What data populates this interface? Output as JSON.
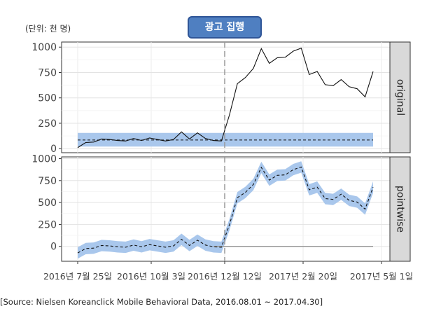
{
  "annotations": {
    "unit": "(단위: 천 명)",
    "campaign_label": "광고 집행",
    "source": "[Source: Nielsen Koreanclick Mobile Behavioral Data, 2016.08.01 ~ 2017.04.30]"
  },
  "colors": {
    "band": "#a9c7ec",
    "panel_strip": "#d9d9d9",
    "intervention_line": "#999999"
  },
  "chart_data": [
    {
      "type": "line",
      "panel": "original",
      "strip_label": "original",
      "x_ticks": [
        "2016년 7월 25일",
        "2016년 10월 3일",
        "2016년 12월 12일",
        "2017년 2월 20일",
        "2017년 5월 1일"
      ],
      "y_ticks": [
        0,
        250,
        500,
        750,
        1000
      ],
      "ylim": [
        -40,
        1050
      ],
      "grid": true,
      "intervention_index": 17,
      "series": [
        {
          "type": "line",
          "values": [
            10,
            60,
            65,
            95,
            90,
            80,
            75,
            100,
            80,
            105,
            90,
            75,
            90,
            165,
            95,
            155,
            100,
            80,
            75,
            330,
            640,
            700,
            790,
            985,
            840,
            895,
            900,
            960,
            990,
            730,
            760,
            630,
            620,
            680,
            610,
            590,
            510,
            760
          ]
        },
        {
          "type": "line_dashed",
          "values": [
            85,
            85,
            85,
            85,
            85,
            85,
            85,
            85,
            85,
            85,
            85,
            85,
            85,
            85,
            85,
            85,
            85,
            85,
            85,
            85,
            85,
            85,
            85,
            85,
            85,
            85,
            85,
            85,
            85,
            85,
            85,
            85,
            85,
            85,
            85,
            85,
            85,
            85
          ]
        },
        {
          "type": "band",
          "lower": [
            20,
            20,
            20,
            20,
            20,
            20,
            20,
            20,
            20,
            20,
            20,
            20,
            20,
            20,
            20,
            20,
            20,
            20,
            20,
            20,
            20,
            20,
            20,
            20,
            20,
            20,
            20,
            20,
            20,
            20,
            20,
            20,
            20,
            20,
            20,
            20,
            20,
            20
          ],
          "upper": [
            155,
            155,
            155,
            155,
            155,
            155,
            155,
            155,
            155,
            155,
            155,
            155,
            155,
            155,
            155,
            155,
            155,
            155,
            155,
            155,
            155,
            155,
            155,
            155,
            155,
            155,
            155,
            155,
            155,
            155,
            155,
            155,
            155,
            155,
            155,
            155,
            155,
            155
          ]
        }
      ]
    },
    {
      "type": "line",
      "panel": "pointwise",
      "strip_label": "pointwise",
      "x_ticks": [
        "2016년 7월 25일",
        "2016년 10월 3일",
        "2016년 12월 12일",
        "2017년 2월 20일",
        "2017년 5월 1일"
      ],
      "y_ticks": [
        0,
        250,
        500,
        750,
        1000
      ],
      "ylim": [
        -170,
        1020
      ],
      "grid": true,
      "intervention_index": 17,
      "series": [
        {
          "type": "line_dashed",
          "values": [
            -75,
            -25,
            -20,
            10,
            5,
            -5,
            -10,
            15,
            -5,
            20,
            5,
            -10,
            5,
            80,
            10,
            70,
            15,
            -5,
            -10,
            245,
            555,
            615,
            705,
            900,
            755,
            810,
            815,
            875,
            905,
            645,
            675,
            545,
            535,
            595,
            525,
            505,
            425,
            675
          ]
        },
        {
          "type": "band",
          "lower": [
            -140,
            -90,
            -85,
            -55,
            -60,
            -70,
            -75,
            -50,
            -70,
            -45,
            -60,
            -75,
            -60,
            15,
            -55,
            5,
            -50,
            -70,
            -75,
            180,
            490,
            550,
            640,
            835,
            690,
            745,
            750,
            810,
            840,
            580,
            610,
            480,
            470,
            530,
            460,
            440,
            360,
            610
          ],
          "upper": [
            -10,
            40,
            45,
            75,
            70,
            60,
            55,
            80,
            60,
            85,
            70,
            55,
            70,
            145,
            75,
            135,
            80,
            60,
            55,
            310,
            620,
            680,
            770,
            965,
            820,
            875,
            880,
            940,
            970,
            710,
            740,
            610,
            600,
            660,
            590,
            570,
            490,
            740
          ]
        },
        {
          "type": "zero_line",
          "values": [
            0
          ]
        }
      ]
    }
  ]
}
